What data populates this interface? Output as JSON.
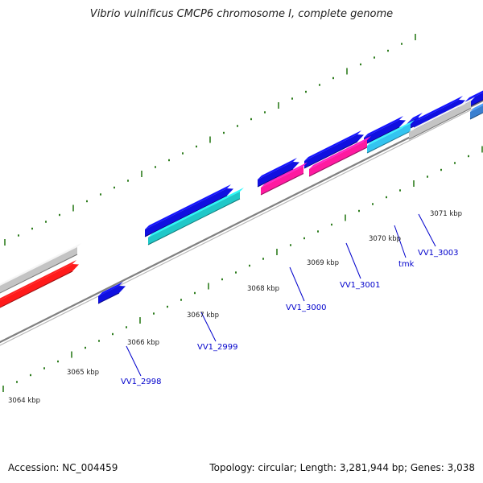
{
  "title": "Vibrio vulnificus CMCP6 chromosome I, complete genome",
  "footer": {
    "accession": "Accession: NC_004459",
    "summary": "Topology: circular; Length: 3,281,944 bp; Genes: 3,038"
  },
  "colors": {
    "backbone": "#808080",
    "tick": "#2e7d1e",
    "gene_label": "#0000cc",
    "cds_blue": "#1010e0",
    "cds_red": "#ff1a1a",
    "cds_grey": "#c4c4c4",
    "cds_teal": "#20c8c8",
    "cds_pink": "#ff1aa0",
    "cds_sky": "#33c4f0"
  },
  "scale_labels": [
    "3064 kbp",
    "3065 kbp",
    "3066 kbp",
    "3067 kbp",
    "3068 kbp",
    "3069 kbp",
    "3070 kbp",
    "3071 kbp"
  ],
  "gene_labels": [
    "VV1_2998",
    "VV1_2999",
    "VV1_3000",
    "VV1_3001",
    "tmk",
    "VV1_3003"
  ]
}
